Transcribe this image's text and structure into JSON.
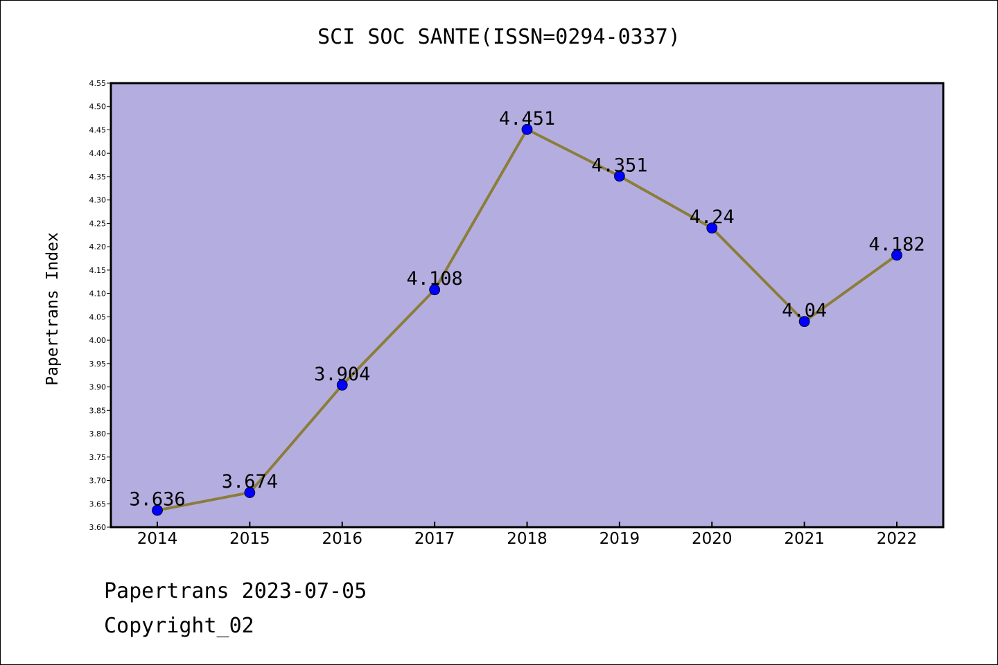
{
  "chart_data": {
    "type": "line",
    "title": "SCI SOC SANTE(ISSN=0294-0337)",
    "xlabel": "",
    "ylabel": "Papertrans Index",
    "categories": [
      "2014",
      "2015",
      "2016",
      "2017",
      "2018",
      "2019",
      "2020",
      "2021",
      "2022"
    ],
    "series": [
      {
        "values": [
          3.636,
          3.674,
          3.904,
          4.108,
          4.451,
          4.351,
          4.24,
          4.04,
          4.182
        ],
        "labels": [
          "3.636",
          "3.674",
          "3.904",
          "4.108",
          "4.451",
          "4.351",
          "4.24",
          "4.04",
          "4.182"
        ],
        "line_color": "#8b7d3a",
        "marker_color": "#0000ff"
      }
    ],
    "ylim": [
      3.6,
      4.55
    ],
    "yticks": [
      "3.60",
      "3.65",
      "3.70",
      "3.75",
      "3.80",
      "3.85",
      "3.90",
      "3.95",
      "4.00",
      "4.05",
      "4.10",
      "4.15",
      "4.20",
      "4.25",
      "4.30",
      "4.35",
      "4.40",
      "4.45",
      "4.50",
      "4.55"
    ],
    "plot_background": "#b4aee0",
    "grid": false
  },
  "footer": {
    "line1": "Papertrans 2023-07-05",
    "line2": "Copyright_02"
  }
}
